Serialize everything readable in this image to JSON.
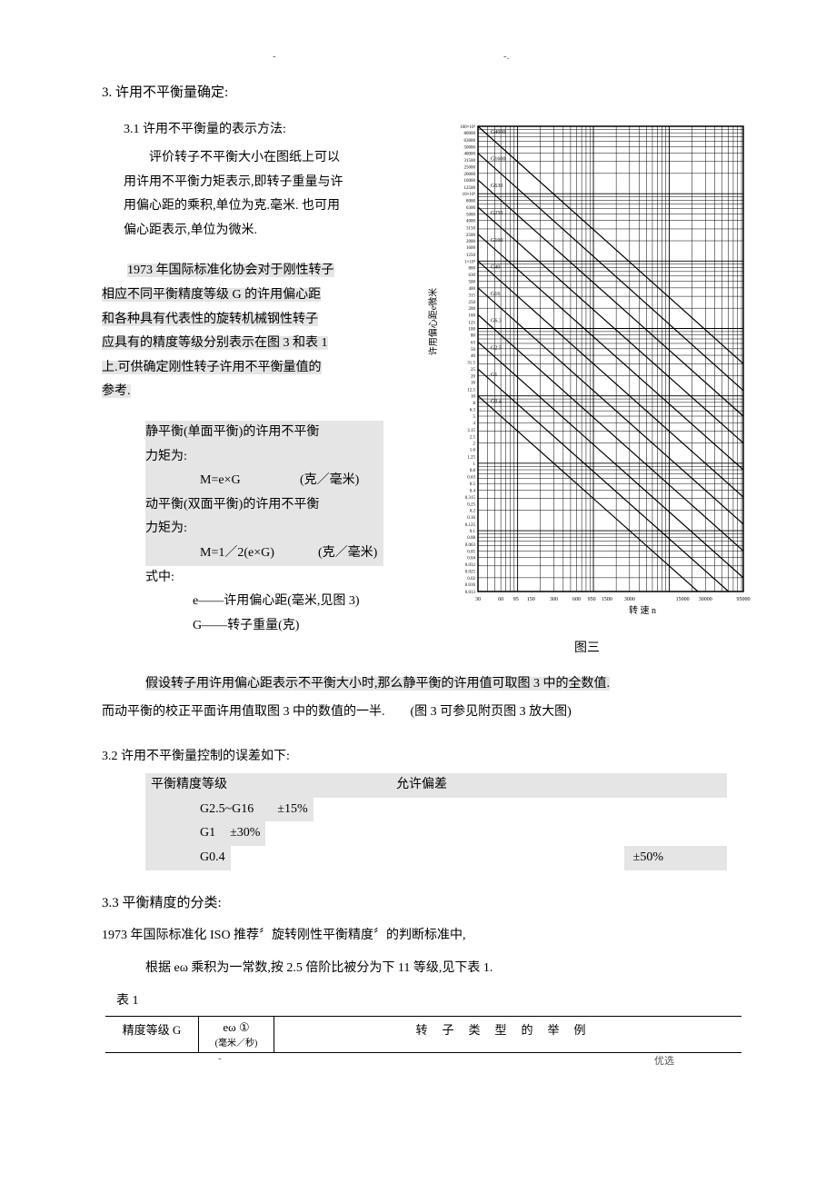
{
  "marks": {
    "m1": "-",
    "m2": "-.",
    "f1": "-",
    "f2": "优选"
  },
  "section3": {
    "title": "3. 许用不平衡量确定:",
    "s31_title": "3.1 许用不平衡量的表示方法:",
    "p1a": "评价转子不平衡大小在图纸上可以",
    "p1b": "用许用不平衡力矩表示,即转子重量与许",
    "p1c": "用偏心距的乘积,单位为克.毫米. 也可用",
    "p1d": "偏心距表示,单位为微米.",
    "p2a": "1973 年国际标准化协会对于刚性转子",
    "p2b": "相应不同平衡精度等级 G 的许用偏心距",
    "p2c": "和各种具有代表性的旋转机械钢性转子",
    "p2d": "应具有的精度等级分别表示在图 3 和表 1",
    "p2e": "上.可供确定刚性转子许用不平衡量值的",
    "p2f": "参考.",
    "hl1a": "静平衡(单面平衡)的许用不平衡",
    "hl1b": "力矩为:",
    "fm1_l": "M=e×G",
    "fm1_r": "(克／毫米)",
    "hl2a": "动平衡(双面平衡)的许用不平衡",
    "hl2b": "力矩为:",
    "fm2_l": "M=1／2(e×G)",
    "fm2_r": "(克／毫米)",
    "shi": "式中:",
    "sub1": "e——许用偏心距(毫米,见图 3)",
    "sub2": "G——转子重量(克)",
    "assume": "假设转子用许用偏心距表示不平衡大小时,那么静平衡的许用值可取图 3 中的全数值.",
    "assume2": "而动平衡的校正平面许用值取图 3 中的数值的一半.　　(图 3 可参见附页图 3 放大图)",
    "s32_title": "3.2 许用不平衡量控制的误差如下:",
    "tol_header_l": "平衡精度等级",
    "tol_header_r": "允许偏差",
    "tol_r1_l": "G2.5~G16",
    "tol_r1_r": "±15%",
    "tol_r2_l": "G1",
    "tol_r2_r": "±30%",
    "tol_r3_l": "G0.4",
    "tol_r3_r": "±50%",
    "s33_title": "3.3 平衡精度的分类:",
    "p33a": "1973 年国际标准化 ISO 推荐〞旋转刚性平衡精度〞的判断标准中,",
    "p33b": "根据 eω  乘积为一常数,按 2.5 倍阶比被分为下 11 等级,见下表 1.",
    "tab1_label": "表 1",
    "tbl_ha": "精度等级 G",
    "tbl_hb": "eω ①",
    "tbl_hb_sub": "(毫米／秒)",
    "tbl_hc": "转子类型的举例"
  },
  "chart": {
    "type": "line",
    "caption": "图三",
    "y_axis_label": "许用偏心距e微米",
    "x_axis_label": "转 速  n",
    "y_scale": "log",
    "x_scale": "log",
    "ylim": [
      0.0125,
      100000
    ],
    "xlim": [
      30,
      95000
    ],
    "y_ticks_major": [
      100000,
      10000,
      1000,
      100,
      10,
      1,
      0.1,
      0.0125
    ],
    "y_tick_labels_sample": [
      "100×10³",
      "80.0",
      "63.0",
      "50.0",
      "40.0",
      "31.5",
      "25.0",
      "20.0",
      "16.0",
      "12.5",
      "10×10³",
      "8.0",
      "6.3",
      "5.0",
      "4.0",
      "3.15",
      "2.5",
      "2.0",
      "1.6",
      "1.25",
      "100",
      "800",
      "630",
      "500",
      "400",
      "315",
      "250",
      "200",
      "160",
      "125",
      "100",
      "80",
      "63",
      "50",
      "40",
      "31.5",
      "25",
      "20",
      "16",
      "12.5",
      "10",
      "8.0",
      "6.3",
      "5.0",
      "4.0",
      "3.15",
      "2.5",
      "2.0",
      "1.6",
      "1.25",
      "1.0",
      "0.8",
      "0.63",
      "0.5",
      "0.4",
      "0.315",
      "0.25",
      "0.2",
      "0.16",
      "0.125",
      "0.1",
      "0.08",
      "0.063",
      "0.05",
      "0.04",
      "0.0315",
      "0.025",
      "0.02",
      "0.016",
      "0.0125"
    ],
    "x_ticks": [
      30,
      60,
      95,
      150,
      300,
      600,
      950,
      1500,
      3000,
      15000,
      30000,
      95000
    ],
    "series": [
      {
        "label": "G4000",
        "p1": [
          30,
          100000
        ],
        "p2": [
          95000,
          30
        ]
      },
      {
        "label": "G1600",
        "p1": [
          30,
          40000
        ],
        "p2": [
          95000,
          12
        ]
      },
      {
        "label": "G630",
        "p1": [
          30,
          16000
        ],
        "p2": [
          95000,
          5
        ]
      },
      {
        "label": "G250",
        "p1": [
          30,
          6300
        ],
        "p2": [
          95000,
          2
        ]
      },
      {
        "label": "G100",
        "p1": [
          30,
          2500
        ],
        "p2": [
          95000,
          0.8
        ]
      },
      {
        "label": "G40",
        "p1": [
          30,
          1000
        ],
        "p2": [
          95000,
          0.315
        ]
      },
      {
        "label": "G16",
        "p1": [
          30,
          400
        ],
        "p2": [
          95000,
          0.125
        ]
      },
      {
        "label": "G6.3",
        "p1": [
          30,
          160
        ],
        "p2": [
          95000,
          0.05
        ]
      },
      {
        "label": "G2.5",
        "p1": [
          30,
          63
        ],
        "p2": [
          95000,
          0.02
        ]
      },
      {
        "label": "G1",
        "p1": [
          30,
          25
        ],
        "p2": [
          95000,
          0.008
        ]
      },
      {
        "label": "G0.4",
        "p1": [
          30,
          10
        ],
        "p2": [
          95000,
          0.00315
        ]
      }
    ],
    "line_color": "#000000",
    "line_width": 1.2,
    "grid_color": "#000000",
    "grid_width": 0.5,
    "background": "#ffffff",
    "font_size_ticks": 5,
    "font_size_axis_label": 10
  }
}
